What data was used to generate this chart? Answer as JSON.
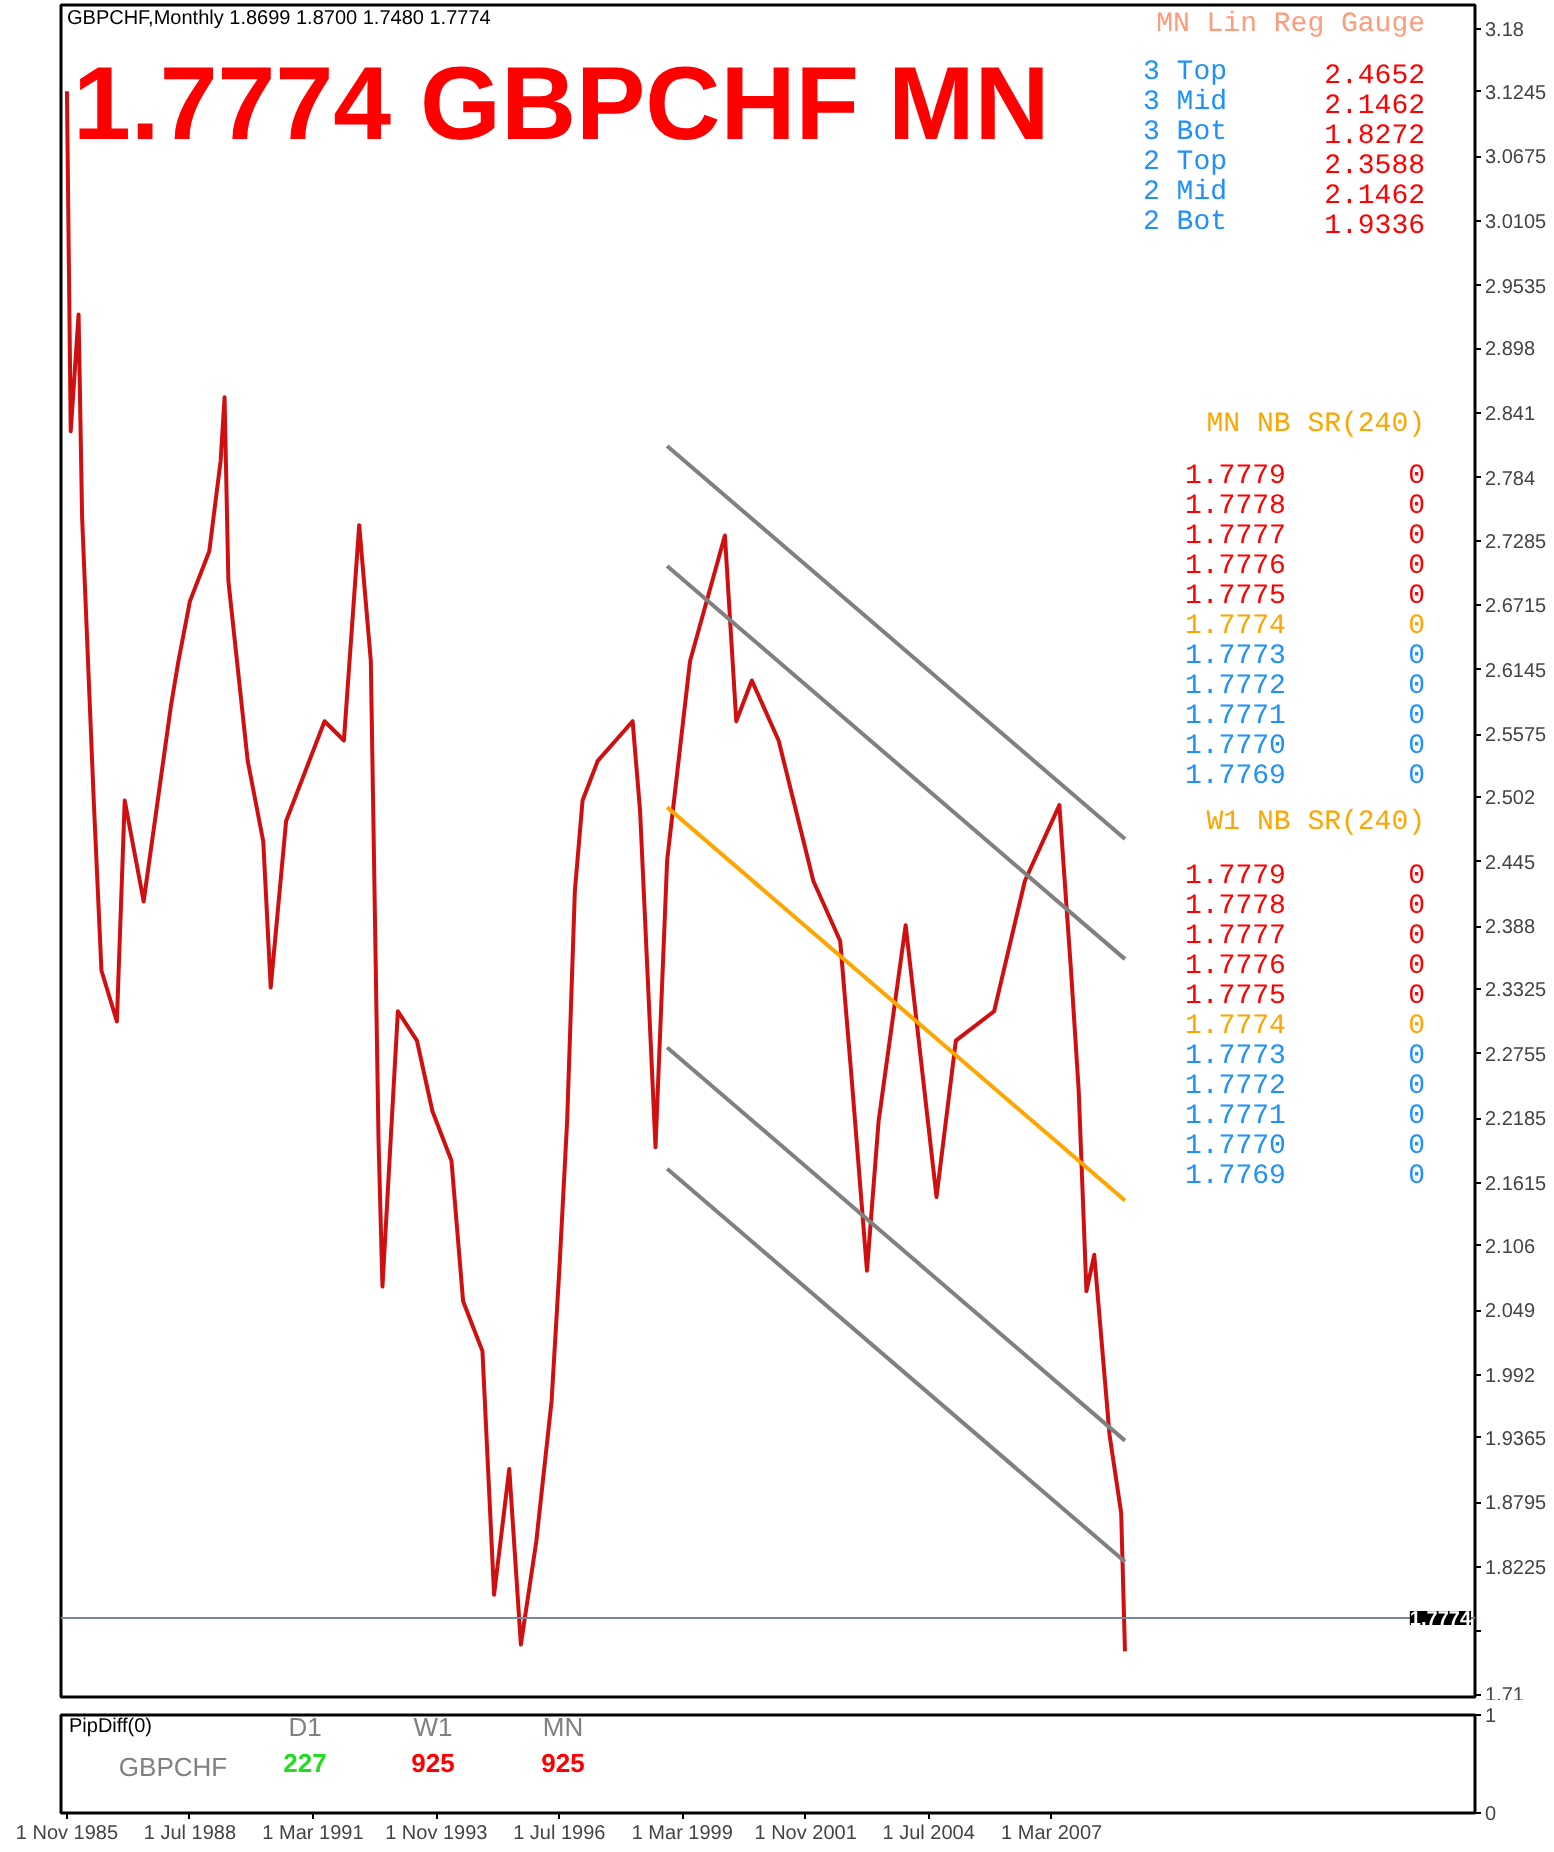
{
  "chart_data": [
    {
      "type": "line",
      "title": "1.7774 GBPCHF MN",
      "subtitle": "GBPCHF,Monthly  1.8699 1.8700 1.7480 1.7774",
      "xlim": [
        "1985-09-15",
        "2016-05-01"
      ],
      "ylim": [
        1.7077,
        3.2012
      ],
      "yticks": [
        3.18,
        3.1245,
        3.0675,
        3.0105,
        2.9535,
        2.898,
        2.841,
        2.784,
        2.7285,
        2.6715,
        2.6145,
        2.5575,
        2.502,
        2.445,
        2.388,
        2.3325,
        2.2755,
        2.2185,
        2.1615,
        2.106,
        2.049,
        1.992,
        1.9365,
        1.8795,
        1.8225,
        {
          "value": 1.7655,
          "label": null
        },
        1.71
      ],
      "tick_labels": "y",
      "series": [
        {
          "color": "#d01010",
          "x": [
            "1985-11",
            "1985-12",
            "1986-02",
            "1986-03",
            "1986-06",
            "1986-08",
            "1986-12",
            "1987-02",
            "1987-07",
            "1988-02",
            "1988-04",
            "1988-07",
            "1988-12",
            "1989-03",
            "1989-04",
            "1989-05",
            "1989-10",
            "1990-02",
            "1990-04",
            "1990-08",
            "1991-06",
            "1991-11",
            "1992-03",
            "1992-06",
            "1992-08",
            "1992-09",
            "1993-01",
            "1993-06",
            "1993-10",
            "1994-03",
            "1994-06",
            "1994-11",
            "1995-02",
            "1995-06",
            "1995-09",
            "1996-01",
            "1996-05",
            "1996-07",
            "1996-09",
            "1996-11",
            "1997-01",
            "1997-05",
            "1998-02",
            "1998-04",
            "1998-08",
            "1998-11",
            "1999-05",
            "2000-02",
            "2000-05",
            "2000-09",
            "2001-04",
            "2002-01",
            "2002-08",
            "2002-11",
            "2003-03",
            "2003-06",
            "2004-01",
            "2004-09",
            "2005-02",
            "2005-12",
            "2006-08",
            "2007-05",
            "2007-08",
            "2007-10",
            "2007-12",
            "2008-02",
            "2008-06",
            "2008-09",
            "2008-10"
          ],
          "values": [
            3.125,
            2.825,
            2.928,
            2.749,
            2.499,
            2.349,
            2.304,
            2.499,
            2.41,
            2.582,
            2.622,
            2.675,
            2.719,
            2.799,
            2.855,
            2.693,
            2.534,
            2.463,
            2.334,
            2.481,
            2.569,
            2.552,
            2.742,
            2.622,
            2.199,
            2.07,
            2.313,
            2.287,
            2.225,
            2.181,
            2.057,
            2.013,
            1.798,
            1.909,
            1.754,
            1.845,
            1.969,
            2.084,
            2.216,
            2.419,
            2.499,
            2.534,
            2.569,
            2.49,
            2.193,
            2.446,
            2.622,
            2.733,
            2.569,
            2.605,
            2.552,
            2.428,
            2.375,
            2.252,
            2.084,
            2.216,
            2.389,
            2.149,
            2.287,
            2.313,
            2.428,
            2.495,
            2.349,
            2.243,
            2.066,
            2.098,
            1.939,
            1.87,
            1.748
          ]
        },
        {
          "type": "line",
          "color": "#808080",
          "x": [
            "1998-11",
            "2008-10"
          ],
          "values": [
            2.812,
            2.465
          ]
        },
        {
          "type": "line",
          "color": "#808080",
          "x": [
            "1998-11",
            "2008-10"
          ],
          "values": [
            2.706,
            2.359
          ]
        },
        {
          "type": "line",
          "color": "#ffa500",
          "x": [
            "1998-11",
            "2008-10"
          ],
          "values": [
            2.493,
            2.146
          ]
        },
        {
          "type": "line",
          "color": "#808080",
          "x": [
            "1998-11",
            "2008-10"
          ],
          "values": [
            2.281,
            1.934
          ]
        },
        {
          "type": "line",
          "color": "#808080",
          "x": [
            "1998-11",
            "2008-10"
          ],
          "values": [
            2.174,
            1.827
          ]
        }
      ],
      "ref_lines": [
        {
          "axis": "y",
          "value": 1.7774,
          "label": "1.7774",
          "color": "#778899"
        }
      ],
      "annotations": [
        "MN Lin Reg Gauge",
        "3 Top",
        "2.4652",
        "3 Mid",
        "2.1462",
        "3 Bot",
        "1.8272",
        "2 Top",
        "2.3588",
        "2 Mid",
        "2.1462",
        "2 Bot",
        "1.9336",
        "MN NB SR(240)",
        "1.7779",
        "0",
        "1.7778",
        "0",
        "1.7777",
        "0",
        "1.7776",
        "0",
        "1.7775",
        "0",
        "1.7774",
        "0",
        "1.7773",
        "0",
        "1.7772",
        "0",
        "1.7771",
        "0",
        "1.7770",
        "0",
        "1.7769",
        "0",
        "W1 NB SR(240)",
        "1.7779",
        "0",
        "1.7778",
        "0",
        "1.7777",
        "0",
        "1.7776",
        "0",
        "1.7775",
        "0",
        "1.7774",
        "0",
        "1.7773",
        "0",
        "1.7772",
        "0",
        "1.7771",
        "0",
        "1.7770",
        "0",
        "1.7769",
        "0"
      ]
    },
    {
      "type": "line",
      "xlim": [
        "1985-09-15",
        "2016-05-01"
      ],
      "ylim": [
        0,
        1
      ],
      "yticks": [
        0,
        1
      ],
      "xticks": [
        {
          "value": "1985-11-01",
          "label": "1 Nov 1985"
        },
        {
          "value": "1988-07-01",
          "label": "1 Jul 1988"
        },
        {
          "value": "1991-03-01",
          "label": "1 Mar 1991"
        },
        {
          "value": "1993-11-01",
          "label": "1 Nov 1993"
        },
        {
          "value": "1996-07-01",
          "label": "1 Jul 1996"
        },
        {
          "value": "1999-03-01",
          "label": "1 Mar 1999"
        },
        {
          "value": "2001-11-01",
          "label": "1 Nov 2001"
        },
        {
          "value": "2004-07-01",
          "label": "1 Jul 2004"
        },
        {
          "value": "2007-03-01",
          "label": "1 Mar 2007"
        }
      ],
      "annotations": [
        "PipDiff(0)",
        "D1",
        "W1",
        "MN",
        "GBPCHF",
        "227",
        "925",
        "925"
      ]
    }
  ]
}
